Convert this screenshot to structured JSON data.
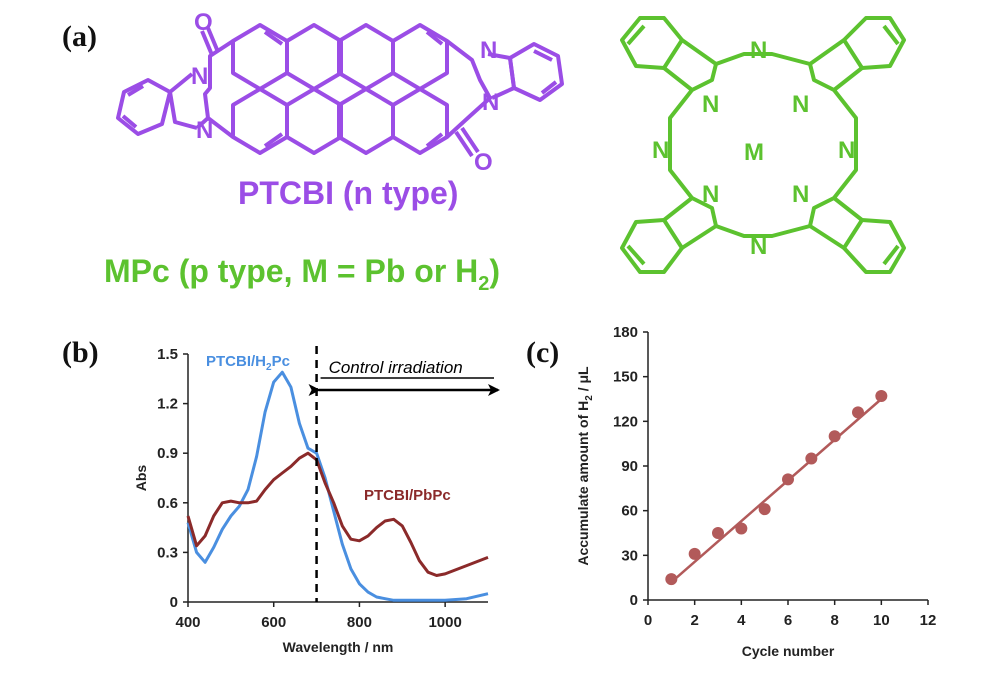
{
  "panels": {
    "a": {
      "label": "(a)",
      "ptcbi_name": "PTCBI (n type)",
      "mpc_prefix": "MPc (p type, M = Pb or H",
      "mpc_sub": "2",
      "mpc_suffix": ")",
      "atoms": {
        "O": "O",
        "N": "N",
        "M": "M"
      },
      "colors": {
        "ptcbi": "#9b4de6",
        "mpc": "#5cc22f"
      }
    },
    "b": {
      "label": "(b)"
    },
    "c": {
      "label": "(c)"
    }
  },
  "chart_data": [
    {
      "type": "line",
      "panel": "b",
      "xlabel": "Wavelength / nm",
      "ylabel": "Abs",
      "xlim": [
        400,
        1100
      ],
      "ylim": [
        0,
        1.5
      ],
      "xticks": [
        400,
        600,
        800,
        1000
      ],
      "yticks": [
        "0",
        "0.3",
        "0.6",
        "0.9",
        "1.2",
        "1.5"
      ],
      "annotation": {
        "text": "Control irradiation",
        "start_x": 700,
        "color": "#000000"
      },
      "series": [
        {
          "name_prefix": "PTCBI/H",
          "name_sub": "2",
          "name_suffix": "Pc",
          "color": "#4a8fe0",
          "x": [
            400,
            420,
            440,
            460,
            480,
            500,
            520,
            540,
            560,
            580,
            600,
            620,
            640,
            660,
            680,
            700,
            720,
            740,
            760,
            780,
            800,
            820,
            840,
            860,
            880,
            900,
            950,
            1000,
            1050,
            1100
          ],
          "y": [
            0.48,
            0.3,
            0.24,
            0.33,
            0.44,
            0.52,
            0.58,
            0.68,
            0.88,
            1.15,
            1.33,
            1.39,
            1.3,
            1.08,
            0.93,
            0.9,
            0.75,
            0.55,
            0.35,
            0.2,
            0.11,
            0.06,
            0.03,
            0.02,
            0.01,
            0.01,
            0.01,
            0.01,
            0.02,
            0.05
          ]
        },
        {
          "name": "PTCBI/PbPc",
          "color": "#8b2a2a",
          "x": [
            400,
            420,
            440,
            460,
            480,
            500,
            520,
            540,
            560,
            580,
            600,
            620,
            640,
            660,
            680,
            700,
            720,
            740,
            760,
            780,
            800,
            820,
            840,
            860,
            880,
            900,
            920,
            940,
            960,
            980,
            1000,
            1050,
            1100
          ],
          "y": [
            0.52,
            0.34,
            0.4,
            0.52,
            0.6,
            0.61,
            0.6,
            0.6,
            0.61,
            0.68,
            0.74,
            0.78,
            0.82,
            0.87,
            0.9,
            0.86,
            0.72,
            0.6,
            0.46,
            0.38,
            0.37,
            0.4,
            0.45,
            0.49,
            0.5,
            0.46,
            0.36,
            0.25,
            0.18,
            0.16,
            0.17,
            0.22,
            0.27
          ]
        }
      ]
    },
    {
      "type": "scatter",
      "panel": "c",
      "xlabel": "Cycle number",
      "ylabel_prefix": "Accumulate amount of H",
      "ylabel_sub": "2",
      "ylabel_suffix": " / μL",
      "xlim": [
        0,
        12
      ],
      "ylim": [
        0,
        180
      ],
      "xticks": [
        0,
        2,
        4,
        6,
        8,
        10,
        12
      ],
      "yticks": [
        0,
        30,
        60,
        90,
        120,
        150,
        180
      ],
      "color": "#b25a5a",
      "x": [
        1,
        2,
        3,
        4,
        5,
        6,
        7,
        8,
        9,
        10
      ],
      "y": [
        14,
        31,
        45,
        48,
        61,
        81,
        95,
        110,
        126,
        137
      ],
      "fit_line": {
        "x": [
          1,
          10
        ],
        "y": [
          12,
          135
        ]
      }
    }
  ]
}
